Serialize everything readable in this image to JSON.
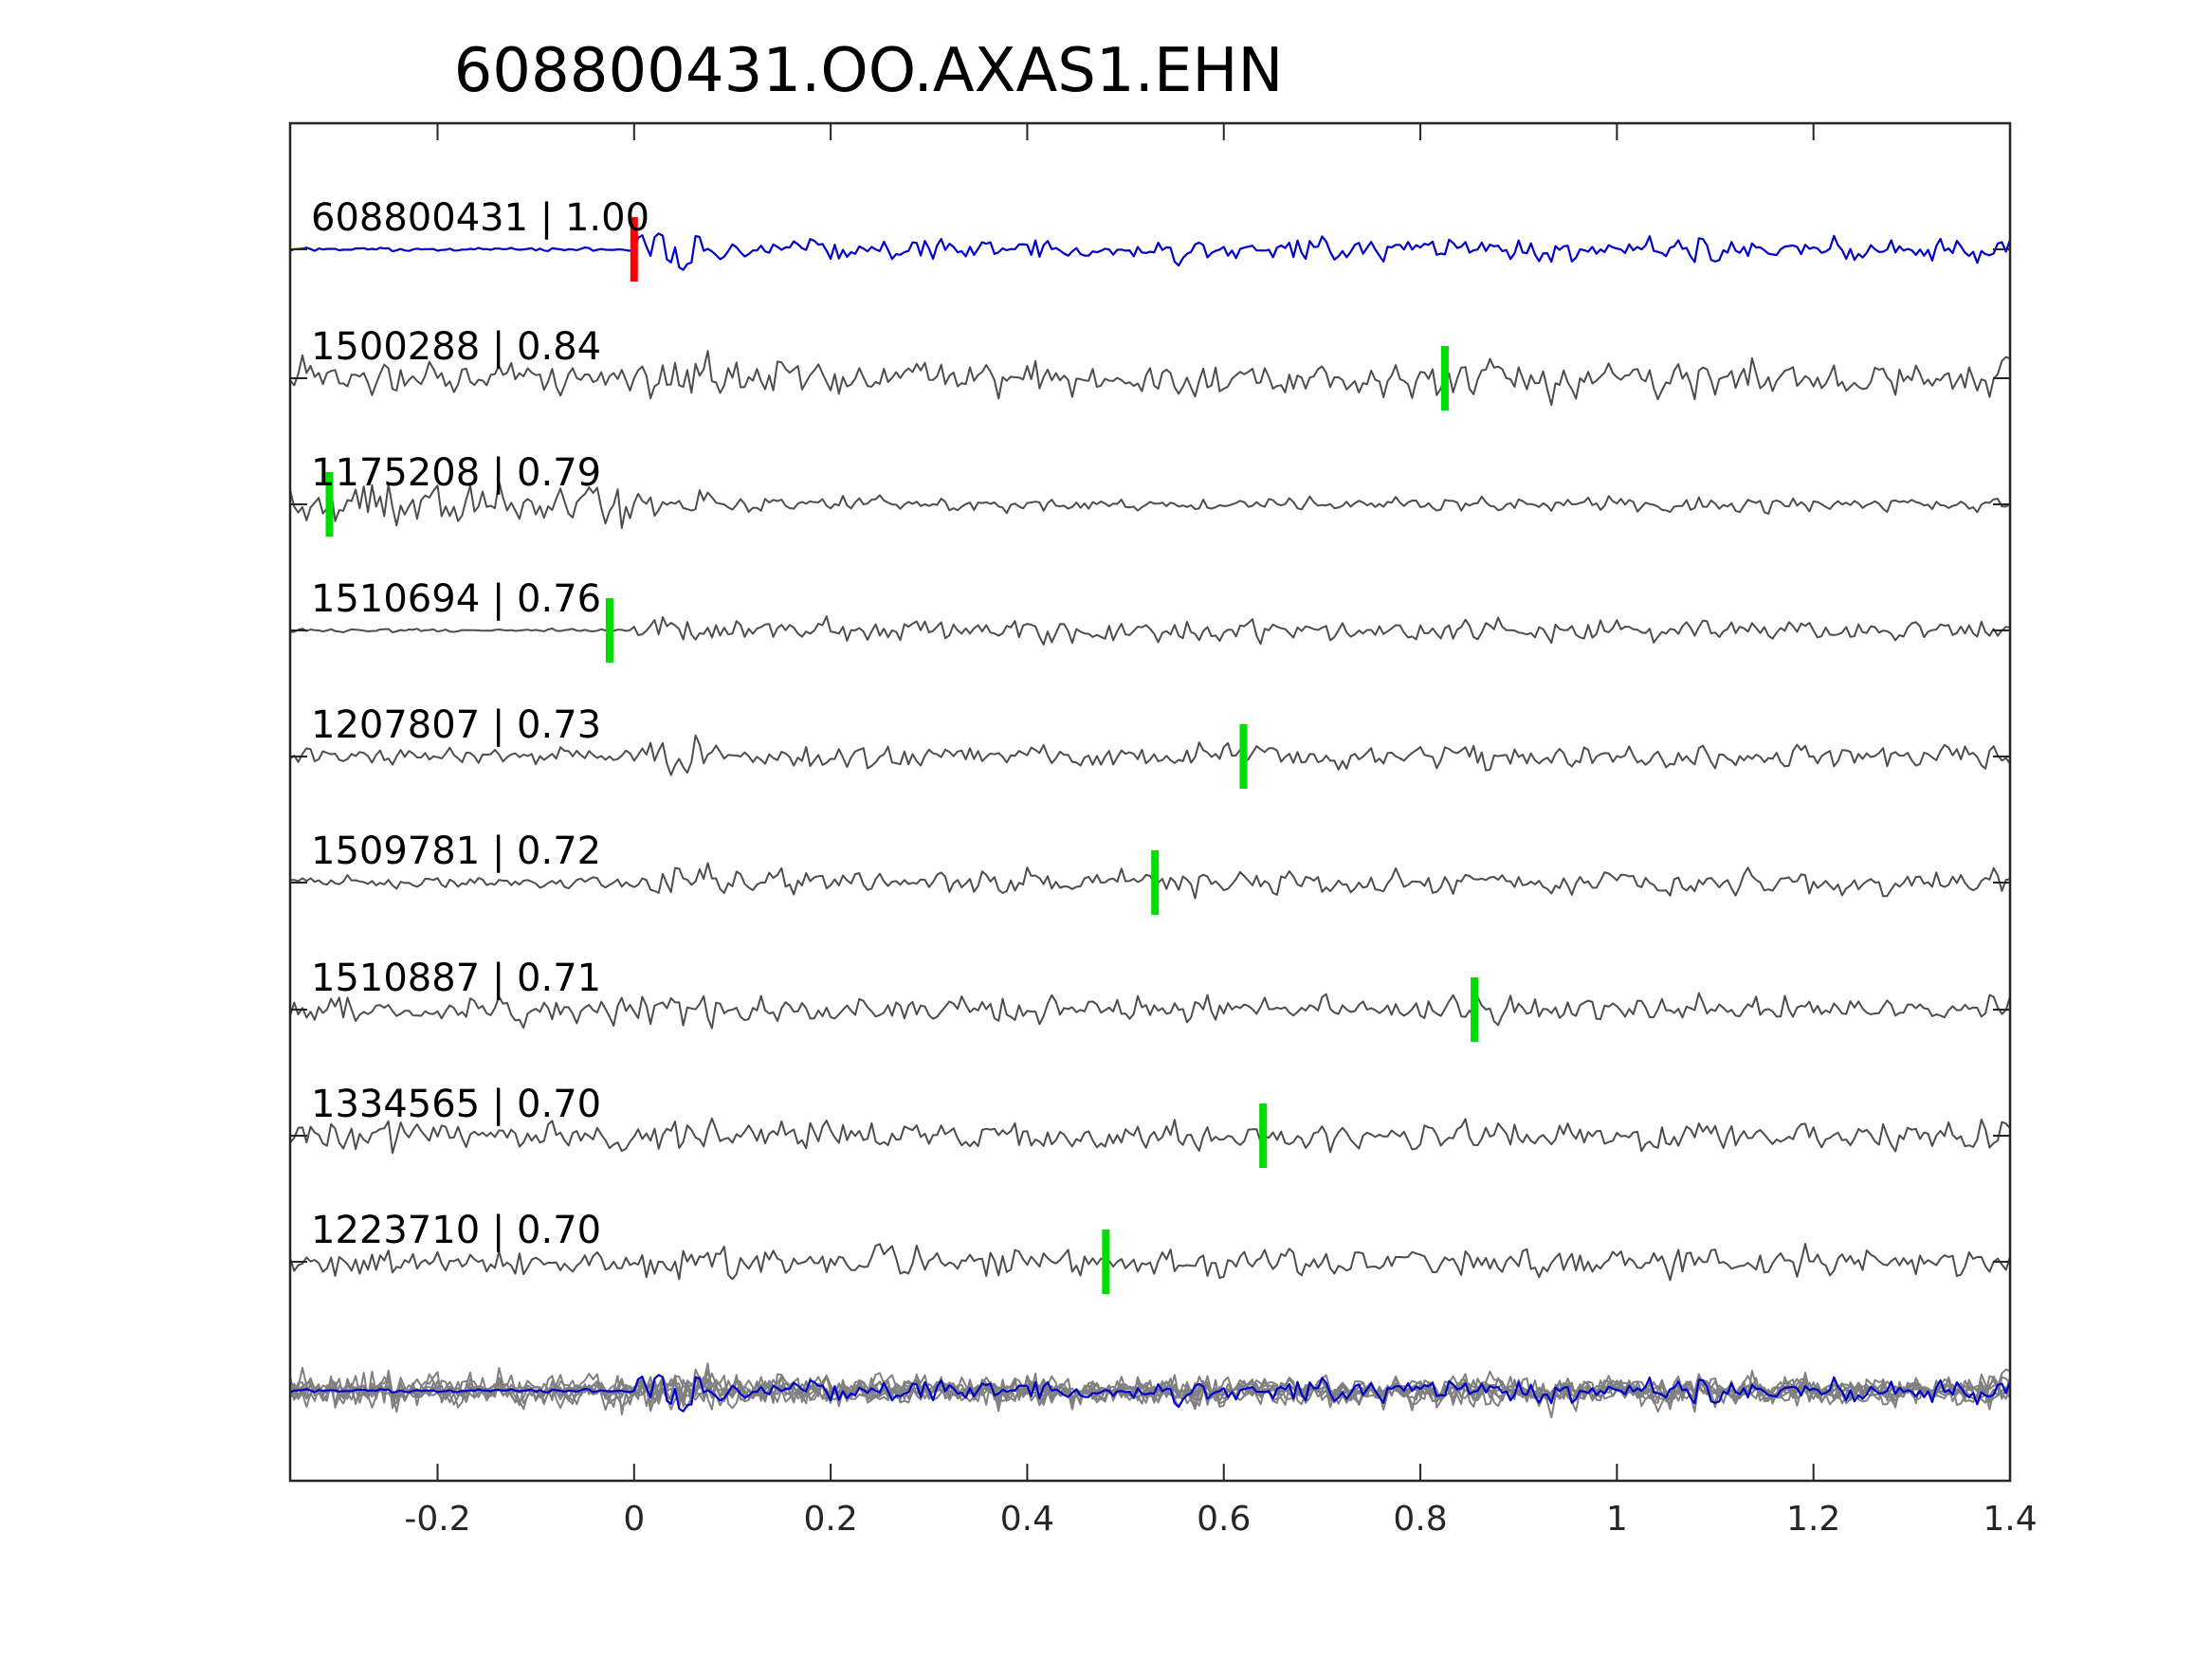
{
  "chart_data": {
    "type": "line",
    "title": "608800431.OO.AXAS1.EHN",
    "xlabel": "",
    "ylabel": "",
    "xlim": [
      -0.35,
      1.4
    ],
    "x_ticks": [
      -0.2,
      0,
      0.2,
      0.4,
      0.6,
      0.8,
      1,
      1.2,
      1.4
    ],
    "x_tick_labels": [
      "-0.2",
      "0",
      "0.2",
      "0.4",
      "0.6",
      "0.8",
      "1",
      "1.2",
      "1.4"
    ],
    "grid": false,
    "legend": "none",
    "colors": {
      "template": "#0000cc",
      "detection": "#4d4d4d",
      "stack": "#808080",
      "template_pick": "#ff0000",
      "detection_pick": "#00dd00",
      "axes": "#262626"
    },
    "series": [
      {
        "label": "608800431 | 1.00",
        "id": "608800431",
        "cc": 1.0,
        "pick_time": 0.0,
        "pick_color": "red",
        "role": "template"
      },
      {
        "label": "1500288 | 0.84",
        "id": "1500288",
        "cc": 0.84,
        "pick_time": 0.825,
        "pick_color": "green",
        "role": "detection"
      },
      {
        "label": "1175208 | 0.79",
        "id": "1175208",
        "cc": 0.79,
        "pick_time": -0.31,
        "pick_color": "green",
        "role": "detection"
      },
      {
        "label": "1510694 | 0.76",
        "id": "1510694",
        "cc": 0.76,
        "pick_time": -0.025,
        "pick_color": "green",
        "role": "detection"
      },
      {
        "label": "1207807 | 0.73",
        "id": "1207807",
        "cc": 0.73,
        "pick_time": 0.62,
        "pick_color": "green",
        "role": "detection"
      },
      {
        "label": "1509781 | 0.72",
        "id": "1509781",
        "cc": 0.72,
        "pick_time": 0.53,
        "pick_color": "green",
        "role": "detection"
      },
      {
        "label": "1510887 | 0.71",
        "id": "1510887",
        "cc": 0.71,
        "pick_time": 0.855,
        "pick_color": "green",
        "role": "detection"
      },
      {
        "label": "1334565 | 0.70",
        "id": "1334565",
        "cc": 0.7,
        "pick_time": 0.64,
        "pick_color": "green",
        "role": "detection"
      },
      {
        "label": "1223710 | 0.70",
        "id": "1223710",
        "cc": 0.7,
        "pick_time": 0.48,
        "pick_color": "green",
        "role": "detection"
      }
    ],
    "stack": {
      "role": "overlay",
      "includes_template": true
    }
  }
}
